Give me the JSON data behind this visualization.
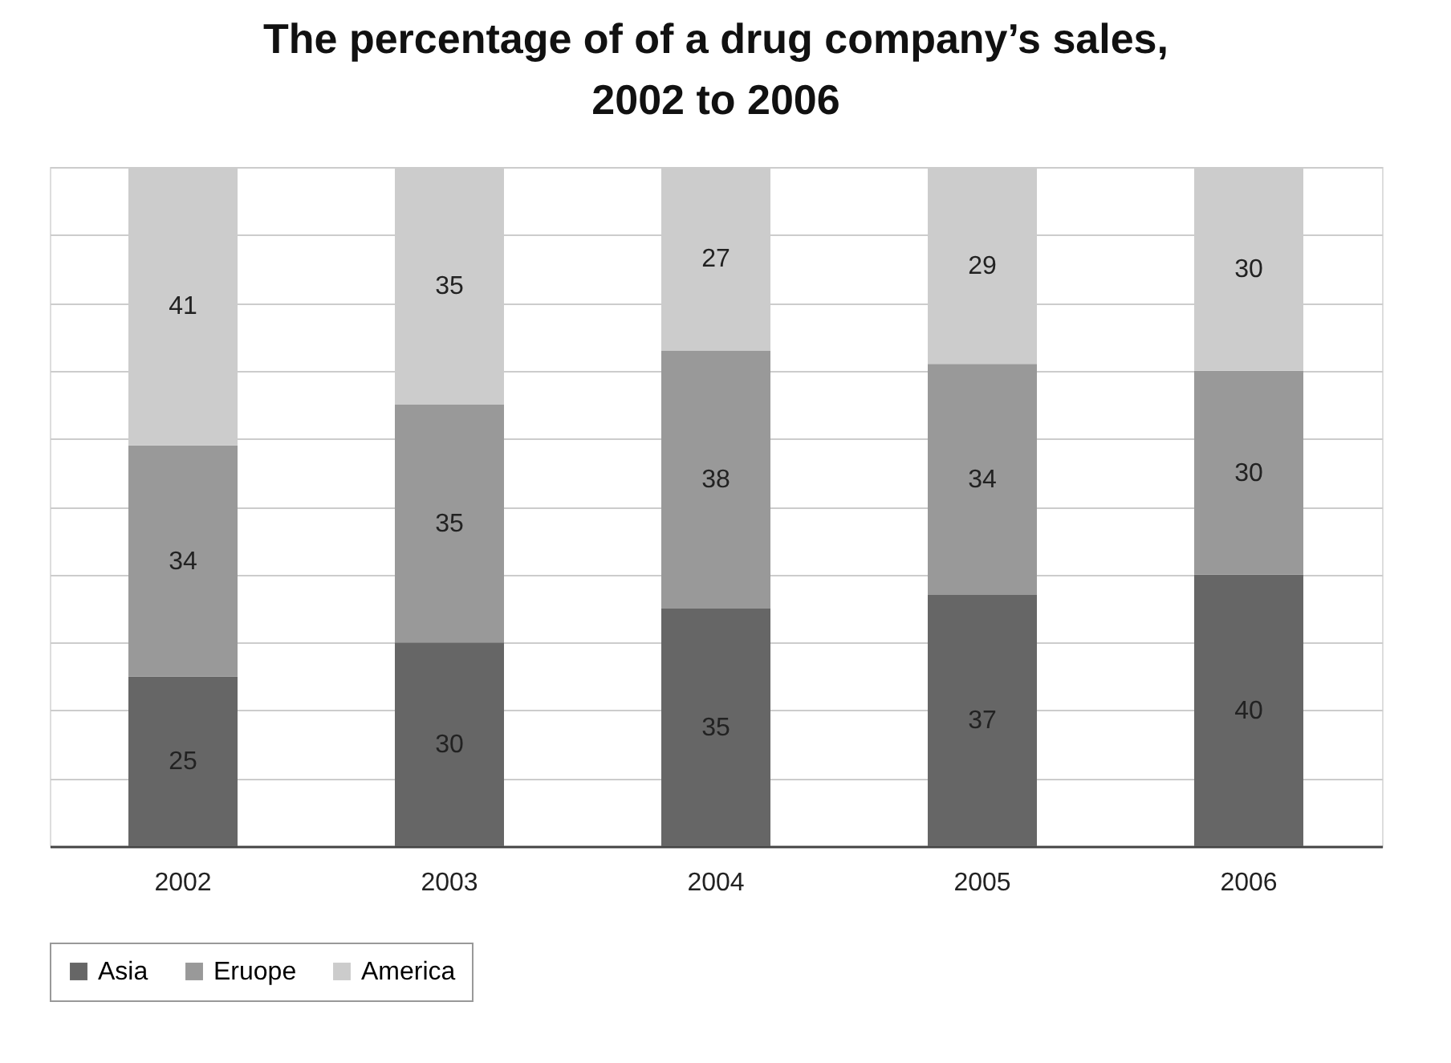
{
  "chart_data": {
    "type": "bar",
    "title": "The percentage of of a drug company’s sales, 2002 to 2006",
    "categories": [
      "2002",
      "2003",
      "2004",
      "2005",
      "2006"
    ],
    "series": [
      {
        "name": "Asia",
        "color": "#666666",
        "values": [
          25,
          30,
          35,
          37,
          40
        ]
      },
      {
        "name": "Eruope",
        "color": "#999999",
        "values": [
          34,
          35,
          38,
          34,
          30
        ]
      },
      {
        "name": "America",
        "color": "#cccccc",
        "values": [
          41,
          35,
          27,
          29,
          30
        ]
      }
    ],
    "stacked": true,
    "data_labels": true,
    "ylim": [
      0,
      100
    ],
    "yticks": [
      {
        "value": 0,
        "label": null
      },
      {
        "value": 10,
        "label": null
      },
      {
        "value": 20,
        "label": null
      },
      {
        "value": 30,
        "label": null
      },
      {
        "value": 40,
        "label": null
      },
      {
        "value": 50,
        "label": null
      },
      {
        "value": 60,
        "label": null
      },
      {
        "value": 70,
        "label": null
      },
      {
        "value": 80,
        "label": null
      },
      {
        "value": 90,
        "label": null
      },
      {
        "value": 100,
        "label": null
      }
    ],
    "grid": "y",
    "legend": "bottom",
    "tick_labels": "x"
  }
}
